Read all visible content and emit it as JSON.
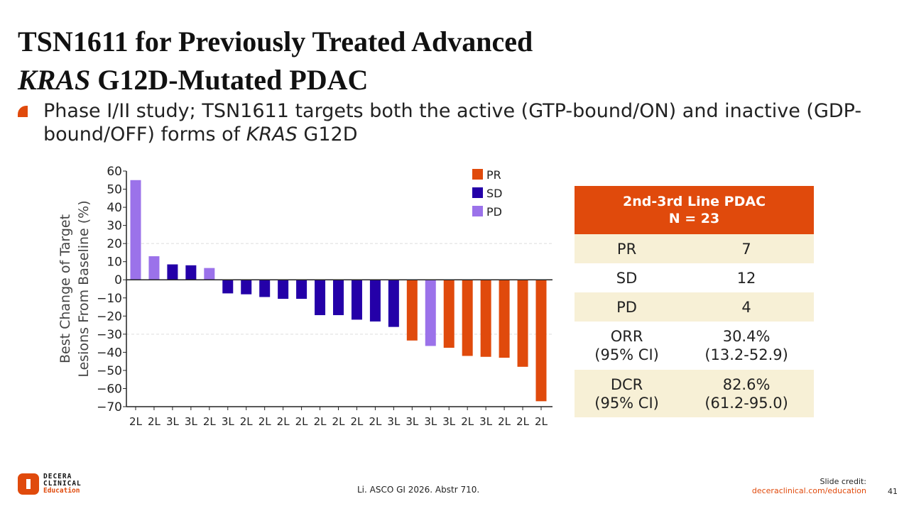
{
  "title": {
    "line1": "TSN1611 for Previously Treated Advanced",
    "line2_italic": "KRAS",
    "line2_rest": " G12D-Mutated PDAC"
  },
  "bullet": {
    "part1": "Phase I/II study; TSN1611 targets both the active (GTP-bound/ON) and inactive (GDP-bound/OFF) forms of ",
    "italic": "KRAS",
    "part2": " G12D"
  },
  "chart_data": {
    "type": "bar",
    "ylabel_line1": "Best Change of Target",
    "ylabel_line2": "Lesions From Baseline (%)",
    "ylim": [
      -70,
      60
    ],
    "yticks": [
      "60",
      "50",
      "40",
      "30",
      "20",
      "10",
      "0",
      "-10",
      "-20",
      "-30",
      "-40",
      "-50",
      "-60",
      "-70"
    ],
    "reference_lines": [
      20,
      -30
    ],
    "categories": [
      "2L",
      "2L",
      "3L",
      "3L",
      "2L",
      "3L",
      "2L",
      "2L",
      "2L",
      "2L",
      "2L",
      "2L",
      "2L",
      "2L",
      "3L",
      "3L",
      "3L",
      "3L",
      "2L",
      "3L",
      "2L",
      "2L",
      "2L"
    ],
    "values": [
      55,
      13,
      8.5,
      8,
      6.5,
      -7.5,
      -8,
      -9.5,
      -10.5,
      -10.5,
      -19.5,
      -19.5,
      -22,
      -23,
      -26,
      -33.5,
      -36.5,
      -37.5,
      -42,
      -42.5,
      -43,
      -48,
      -67
    ],
    "response": [
      "PD",
      "PD",
      "SD",
      "SD",
      "PD",
      "SD",
      "SD",
      "SD",
      "SD",
      "SD",
      "SD",
      "SD",
      "SD",
      "SD",
      "SD",
      "PR",
      "PD",
      "PR",
      "PR",
      "PR",
      "PR",
      "PR",
      "PR"
    ],
    "legend": [
      {
        "name": "PR",
        "color": "#e04a0c"
      },
      {
        "name": "SD",
        "color": "#2400a8"
      },
      {
        "name": "PD",
        "color": "#9b72ea"
      }
    ],
    "legend_position": "top-right"
  },
  "table": {
    "header1": "2nd-3rd Line PDAC",
    "header2": "N = 23",
    "rows": [
      {
        "label": "PR",
        "value": "7"
      },
      {
        "label": "SD",
        "value": "12"
      },
      {
        "label": "PD",
        "value": "4"
      },
      {
        "label": "ORR",
        "sub": "(95% CI)",
        "value": "30.4%",
        "value_sub": "(13.2-52.9)"
      },
      {
        "label": "DCR",
        "sub": "(95% CI)",
        "value": "82.6%",
        "value_sub": "(61.2-95.0)"
      }
    ]
  },
  "footer": {
    "citation": "Li. ASCO GI 2026. Abstr 710.",
    "credit_label": "Slide credit:",
    "credit_link": "deceraclinical.com/education",
    "page": "41",
    "logo": [
      "DECERA",
      "CLINICAL",
      "Education"
    ]
  }
}
